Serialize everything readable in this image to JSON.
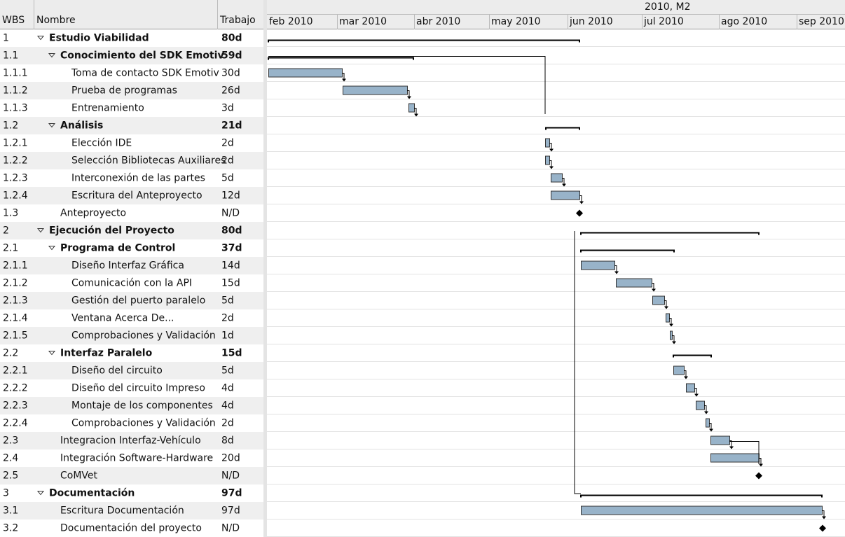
{
  "header": {
    "columns": [
      "WBS",
      "Nombre",
      "Trabajo"
    ],
    "timeline_top": "2010, M2",
    "months": [
      "feb 2010",
      "mar 2010",
      "abr 2010",
      "may 2010",
      "jun 2010",
      "jul 2010",
      "ago 2010",
      "sep 2010"
    ]
  },
  "rows": [
    {
      "wbs": "1",
      "name": "Estudio Viabilidad",
      "work": "80d"
    },
    {
      "wbs": "1.1",
      "name": "Conocimiento del SDK Emotiv",
      "work": "59d"
    },
    {
      "wbs": "1.1.1",
      "name": "Toma de contacto SDK Emotiv",
      "work": "30d"
    },
    {
      "wbs": "1.1.2",
      "name": "Prueba de programas",
      "work": "26d"
    },
    {
      "wbs": "1.1.3",
      "name": "Entrenamiento",
      "work": "3d"
    },
    {
      "wbs": "1.2",
      "name": "Análisis",
      "work": "21d"
    },
    {
      "wbs": "1.2.1",
      "name": "Elección IDE",
      "work": "2d"
    },
    {
      "wbs": "1.2.2",
      "name": "Selección Bibliotecas Auxiliares",
      "work": "2d"
    },
    {
      "wbs": "1.2.3",
      "name": "Interconexión de las partes",
      "work": "5d"
    },
    {
      "wbs": "1.2.4",
      "name": "Escritura del Anteproyecto",
      "work": "12d"
    },
    {
      "wbs": "1.3",
      "name": "Anteproyecto",
      "work": "N/D"
    },
    {
      "wbs": "2",
      "name": "Ejecución del Proyecto",
      "work": "80d"
    },
    {
      "wbs": "2.1",
      "name": "Programa de Control",
      "work": "37d"
    },
    {
      "wbs": "2.1.1",
      "name": "Diseño Interfaz Gráfica",
      "work": "14d"
    },
    {
      "wbs": "2.1.2",
      "name": "Comunicación con la API",
      "work": "15d"
    },
    {
      "wbs": "2.1.3",
      "name": "Gestión del puerto paralelo",
      "work": "5d"
    },
    {
      "wbs": "2.1.4",
      "name": "Ventana Acerca De...",
      "work": "2d"
    },
    {
      "wbs": "2.1.5",
      "name": "Comprobaciones y Validación",
      "work": "1d"
    },
    {
      "wbs": "2.2",
      "name": "Interfaz Paralelo",
      "work": "15d"
    },
    {
      "wbs": "2.2.1",
      "name": "Diseño del circuito",
      "work": "5d"
    },
    {
      "wbs": "2.2.2",
      "name": "Diseño del circuito Impreso",
      "work": "4d"
    },
    {
      "wbs": "2.2.3",
      "name": "Montaje de los componentes",
      "work": "4d"
    },
    {
      "wbs": "2.2.4",
      "name": "Comprobaciones y Validación",
      "work": "2d"
    },
    {
      "wbs": "2.3",
      "name": "Integracion Interfaz-Vehículo",
      "work": "8d"
    },
    {
      "wbs": "2.4",
      "name": "Integración Software-Hardware",
      "work": "20d"
    },
    {
      "wbs": "2.5",
      "name": "CoMVet",
      "work": "N/D"
    },
    {
      "wbs": "3",
      "name": "Documentación",
      "work": "97d"
    },
    {
      "wbs": "3.1",
      "name": "Escritura Documentación",
      "work": "97d"
    },
    {
      "wbs": "3.2",
      "name": "Documentación del proyecto",
      "work": "N/D"
    }
  ]
}
